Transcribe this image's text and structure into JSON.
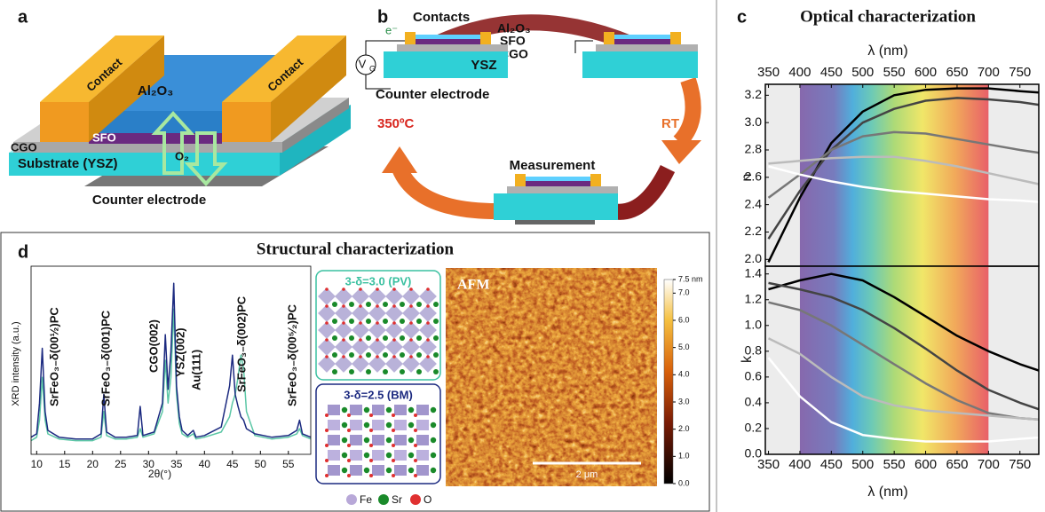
{
  "panel_a": {
    "label": "a",
    "contact_left": "Contact",
    "contact_right": "Contact",
    "top_layer": "Al₂O₃",
    "film": "SFO",
    "buffer": "CGO",
    "gas": "O₂",
    "substrate": "Substrate (YSZ)",
    "electrode": "Counter electrode"
  },
  "panel_b": {
    "label": "b",
    "contacts": "Contacts",
    "electron": "e⁻",
    "top_layer": "Al₂O₃",
    "film": "SFO",
    "buffer": "CGO",
    "gate_v": "V",
    "gate_sub": "G",
    "substrate": "YSZ",
    "electrode": "Counter electrode",
    "hot": "350ºC",
    "cold": "RT",
    "measure": "Measurement"
  },
  "panel_c": {
    "label": "c"
  },
  "panel_d": {
    "label": "d",
    "pv": "3-δ=3.0 (PV)",
    "bm": "3-δ=2.5 (BM)",
    "atoms": [
      "Fe",
      "Sr",
      "O"
    ],
    "afm": "AFM",
    "scale_bar": "2 μm",
    "colorbar": {
      "lim": [
        0,
        7.5
      ],
      "ticks": [
        {
          "value": 7.5,
          "label": "7.5 nm"
        },
        {
          "value": 7,
          "label": "7.0"
        },
        {
          "value": 6,
          "label": "6.0"
        },
        {
          "value": 5,
          "label": "5.0"
        },
        {
          "value": 4,
          "label": "4.0"
        },
        {
          "value": 3,
          "label": "3.0"
        },
        {
          "value": 2,
          "label": "2.0"
        },
        {
          "value": 1,
          "label": "1.0"
        },
        {
          "value": 0,
          "label": "0.0"
        }
      ]
    }
  },
  "chart_data": [
    {
      "type": "line",
      "title": "Optical characterization",
      "xlabel": "λ (nm)",
      "ylabel": "n",
      "x": [
        350,
        400,
        450,
        500,
        550,
        600,
        650,
        700,
        750,
        780
      ],
      "xlim": [
        345,
        780
      ],
      "xticks": [
        350,
        400,
        450,
        500,
        550,
        600,
        650,
        700,
        750
      ],
      "ylim": [
        1.95,
        3.28
      ],
      "yticks": [
        {
          "value": 2,
          "label": "2.0"
        },
        2.2,
        2.4,
        2.6,
        2.8,
        {
          "value": 3,
          "label": "3.0"
        },
        3.2
      ],
      "band": [
        400,
        700
      ],
      "series": [
        {
          "color": "#000000",
          "values": [
            1.98,
            2.45,
            2.85,
            3.08,
            3.2,
            3.24,
            3.25,
            3.25,
            3.23,
            3.22
          ]
        },
        {
          "color": "#444444",
          "values": [
            2.15,
            2.5,
            2.8,
            3.0,
            3.1,
            3.16,
            3.18,
            3.17,
            3.15,
            3.13
          ]
        },
        {
          "color": "#777777",
          "values": [
            2.45,
            2.62,
            2.8,
            2.9,
            2.93,
            2.92,
            2.88,
            2.84,
            2.8,
            2.78
          ]
        },
        {
          "color": "#bbbbbb",
          "values": [
            2.7,
            2.72,
            2.74,
            2.75,
            2.75,
            2.72,
            2.68,
            2.63,
            2.58,
            2.55
          ]
        },
        {
          "color": "#ffffff",
          "values": [
            2.68,
            2.62,
            2.57,
            2.53,
            2.5,
            2.48,
            2.46,
            2.44,
            2.43,
            2.42
          ]
        }
      ]
    },
    {
      "type": "line",
      "xlabel": "λ (nm)",
      "ylabel": "k",
      "x": [
        350,
        400,
        450,
        500,
        550,
        600,
        650,
        700,
        750,
        780
      ],
      "xlim": [
        345,
        780
      ],
      "xticks": [
        350,
        400,
        450,
        500,
        550,
        600,
        650,
        700,
        750
      ],
      "ylim": [
        0,
        1.46
      ],
      "yticks": [
        {
          "value": 0,
          "label": "0.0"
        },
        0.2,
        0.4,
        0.6,
        0.8,
        {
          "value": 1,
          "label": "1.0"
        },
        1.2,
        1.4
      ],
      "band": [
        400,
        700
      ],
      "series": [
        {
          "color": "#000000",
          "values": [
            1.28,
            1.35,
            1.4,
            1.35,
            1.22,
            1.07,
            0.92,
            0.8,
            0.7,
            0.65
          ]
        },
        {
          "color": "#444444",
          "values": [
            1.33,
            1.28,
            1.22,
            1.12,
            0.98,
            0.82,
            0.65,
            0.5,
            0.4,
            0.35
          ]
        },
        {
          "color": "#777777",
          "values": [
            1.18,
            1.12,
            1.0,
            0.85,
            0.7,
            0.55,
            0.42,
            0.32,
            0.28,
            0.27
          ]
        },
        {
          "color": "#bbbbbb",
          "values": [
            0.9,
            0.78,
            0.6,
            0.45,
            0.38,
            0.34,
            0.32,
            0.3,
            0.28,
            0.27
          ]
        },
        {
          "color": "#ffffff",
          "values": [
            0.75,
            0.45,
            0.25,
            0.15,
            0.12,
            0.1,
            0.1,
            0.1,
            0.12,
            0.13
          ]
        }
      ]
    },
    {
      "type": "line",
      "title": "Structural characterization",
      "xlabel": "2θ(°)",
      "ylabel": "XRD intensity (a.u.)",
      "x": [
        9,
        10,
        10.5,
        11,
        11.5,
        12,
        14,
        17,
        20,
        21.5,
        22,
        22.5,
        24,
        26,
        28,
        28.5,
        29,
        31,
        32.5,
        33,
        33.5,
        34,
        34.5,
        35,
        35.5,
        36,
        37,
        38,
        38.5,
        40,
        43,
        44.5,
        45,
        45.5,
        46,
        46.5,
        47,
        47.5,
        49,
        52,
        55,
        56.5,
        57,
        57.5,
        59
      ],
      "xlim": [
        9,
        59
      ],
      "xticks": [
        10,
        15,
        20,
        25,
        30,
        35,
        40,
        45,
        50,
        55
      ],
      "ylim": [
        0,
        110
      ],
      "annotations": [
        "SrFeO₃₋δ(00½)PC",
        "SrFeO₃₋δ(001)PC",
        "CGO(002)",
        "YSZ(002)",
        "Au(111)",
        "SrFeO₃₋δ(002)PC",
        "SrFeO₃₋δ(00⁵⁄₂)PC"
      ],
      "series": [
        {
          "color": "#5cc7a6",
          "values": [
            8,
            10,
            20,
            45,
            20,
            12,
            9,
            8,
            8,
            10,
            25,
            11,
            9,
            9,
            10,
            15,
            10,
            12,
            25,
            55,
            30,
            45,
            85,
            35,
            18,
            12,
            10,
            12,
            9,
            10,
            13,
            22,
            30,
            35,
            45,
            58,
            50,
            25,
            11,
            9,
            10,
            12,
            15,
            11,
            9
          ]
        },
        {
          "color": "#1c2a80",
          "values": [
            10,
            12,
            30,
            62,
            25,
            14,
            10,
            9,
            9,
            12,
            35,
            13,
            10,
            10,
            11,
            28,
            11,
            13,
            30,
            70,
            38,
            60,
            100,
            40,
            22,
            14,
            11,
            14,
            10,
            11,
            16,
            40,
            58,
            35,
            28,
            22,
            20,
            15,
            12,
            10,
            11,
            14,
            20,
            12,
            10
          ]
        }
      ]
    }
  ]
}
